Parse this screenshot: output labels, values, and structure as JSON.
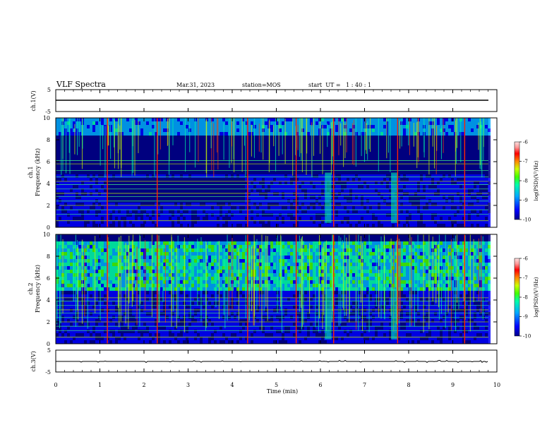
{
  "header": {
    "title": "VLF Spectra",
    "date": "Mar.31, 2023",
    "station": "station=MOS",
    "start_ut": "start  UT =   1 : 40 : 1"
  },
  "colors": {
    "spectrogram_scale": [
      "#00008b",
      "#0000ff",
      "#00aaff",
      "#00ffaa",
      "#44ff00",
      "#ccff00",
      "#ff8800",
      "#ff0000",
      "#ff9999",
      "#ffe0e0"
    ]
  },
  "chart_data": [
    {
      "type": "line",
      "panel": "ch.1 waveform",
      "ylabel": "ch.1(V)",
      "ylim": [
        -5,
        5
      ],
      "yticks": [
        "5",
        "-5"
      ],
      "xlim": [
        0,
        10
      ],
      "series": [
        {
          "x": [
            0,
            9.8
          ],
          "y": [
            0,
            0
          ]
        }
      ]
    },
    {
      "type": "heatmap",
      "panel": "ch.1 spectrogram",
      "ylabel": "ch.1",
      "ylabel2": "Frequency (kHz)",
      "ylim": [
        0,
        10
      ],
      "yticks": [
        "0",
        "2",
        "4",
        "6",
        "8",
        "10"
      ],
      "xlim": [
        0,
        10
      ],
      "colorbar": {
        "label": "log(PSD)(V²/Hz)",
        "range": [
          -10,
          -6
        ],
        "ticks": [
          "-6",
          "-7",
          "-8",
          "-9",
          "-10"
        ]
      },
      "features": {
        "sferic_times_min": [
          1.17,
          2.3,
          4.35,
          5.45,
          6.3,
          7.75,
          9.27
        ],
        "broadband_patch_min": [
          6.1,
          6.25,
          7.6,
          7.75
        ],
        "hiss_band_khz": [
          8.5,
          10
        ],
        "line_freqs_khz": [
          0.6,
          1.2,
          1.6,
          2.0,
          2.4,
          2.8,
          3.1,
          3.5,
          3.9,
          4.2,
          4.6,
          5.2,
          5.8,
          6.1
        ]
      }
    },
    {
      "type": "heatmap",
      "panel": "ch.2 spectrogram",
      "ylabel": "ch.2",
      "ylabel2": "Frequency (kHz)",
      "ylim": [
        0,
        10
      ],
      "yticks": [
        "0",
        "2",
        "4",
        "6",
        "8",
        "10"
      ],
      "xlim": [
        0,
        10
      ],
      "colorbar": {
        "label": "log(PSD)(V²/Hz)",
        "range": [
          -10,
          -6
        ],
        "ticks": [
          "-6",
          "-7",
          "-8",
          "-9",
          "-10"
        ]
      },
      "features": {
        "sferic_times_min": [
          1.17,
          2.3,
          4.35,
          5.45,
          6.3,
          7.75,
          9.27
        ],
        "broadband_patch_min": [
          6.1,
          6.25,
          7.6,
          7.75
        ],
        "hiss_band_khz": [
          5,
          9.5
        ],
        "line_freqs_khz": [
          0.6,
          1.2,
          1.6,
          2.0,
          2.4,
          2.8,
          3.1,
          3.5,
          3.9,
          4.2
        ]
      }
    },
    {
      "type": "line",
      "panel": "ch.3 waveform",
      "ylabel": "ch.3(V)",
      "ylim": [
        -5,
        5
      ],
      "yticks": [
        "5",
        "-5"
      ],
      "xlim": [
        0,
        10
      ],
      "series": [
        {
          "x": [
            0,
            9.8
          ],
          "y": [
            0,
            0
          ]
        }
      ]
    }
  ],
  "xaxis": {
    "label": "Time (min)",
    "ticks": [
      "0",
      "1",
      "2",
      "3",
      "4",
      "5",
      "6",
      "7",
      "8",
      "9",
      "10"
    ]
  }
}
